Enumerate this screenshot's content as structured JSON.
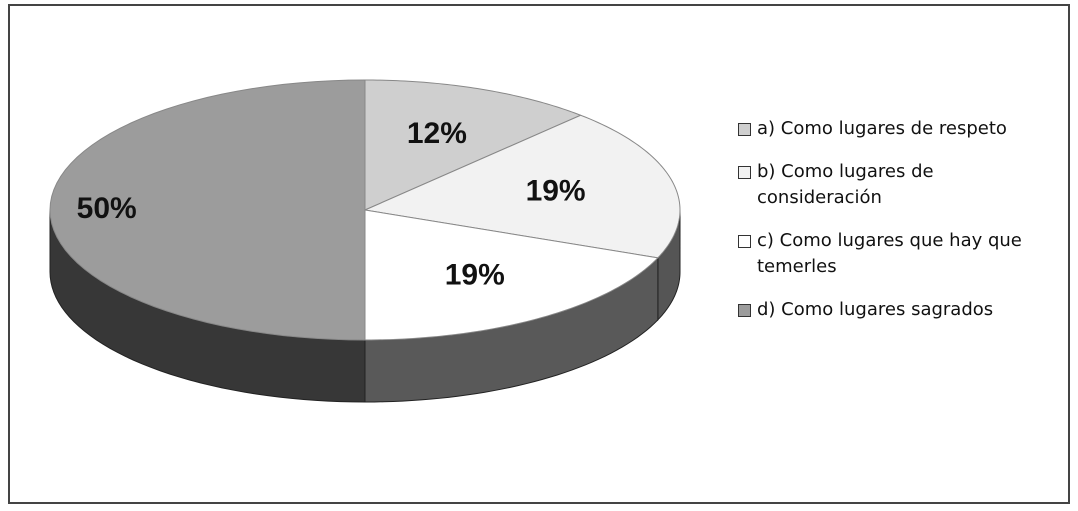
{
  "chart_data": {
    "type": "pie",
    "categories": [
      "a) Como lugares de respeto",
      "b) Como lugares de consideración",
      "c) Como lugares que hay que temerles",
      "d) Como lugares sagrados"
    ],
    "values": [
      12,
      19,
      19,
      50
    ],
    "value_labels": [
      "12%",
      "19%",
      "19%",
      "50%"
    ],
    "colors": [
      "#cfcfcf",
      "#f2f2f2",
      "#ffffff",
      "#9c9c9c"
    ],
    "legend": "right"
  }
}
